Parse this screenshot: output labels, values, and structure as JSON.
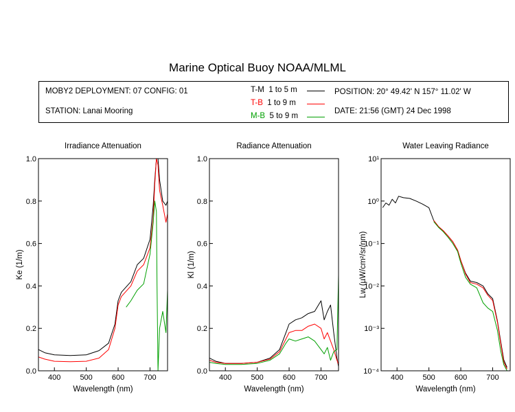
{
  "title": "Marine Optical Buoy NOAA/MLML",
  "info": {
    "deployment": "MOBY2 DEPLOYMENT: 07 CONFIG: 01",
    "station": "STATION: Lanai Mooring",
    "position": "POSITION: 20° 49.42' N   157° 11.02' W",
    "date": "DATE: 21:56 (GMT) 24 Dec 1998"
  },
  "legend": [
    {
      "code": "T-M",
      "range": "1 to 5  m",
      "color": "#000000"
    },
    {
      "code": "T-B",
      "range": "1 to 9  m",
      "color": "#ff0000"
    },
    {
      "code": "M-B",
      "range": "5 to 9  m",
      "color": "#00a000"
    }
  ],
  "chart_data": [
    {
      "type": "line",
      "title": "Irradiance Attenuation",
      "xlabel": "Wavelength (nm)",
      "ylabel": "Ke  (1/m)",
      "xlim": [
        350,
        755
      ],
      "ylim": [
        0,
        1.0
      ],
      "xticks": [
        400,
        500,
        600,
        700
      ],
      "yticks": [
        0.0,
        0.2,
        0.4,
        0.6,
        0.8,
        1.0
      ],
      "series": [
        {
          "name": "T-M",
          "color": "#000000",
          "x": [
            350,
            370,
            400,
            450,
            500,
            540,
            570,
            590,
            600,
            610,
            640,
            660,
            680,
            700,
            710,
            715,
            720,
            725,
            730,
            740,
            750,
            755
          ],
          "y": [
            0.1,
            0.085,
            0.075,
            0.072,
            0.075,
            0.095,
            0.13,
            0.22,
            0.33,
            0.37,
            0.42,
            0.5,
            0.53,
            0.62,
            0.78,
            0.9,
            1.0,
            1.0,
            0.9,
            0.8,
            0.78,
            0.8
          ]
        },
        {
          "name": "T-B",
          "color": "#ff0000",
          "x": [
            350,
            370,
            400,
            450,
            500,
            540,
            570,
            590,
            600,
            610,
            640,
            660,
            680,
            700,
            710,
            715,
            720,
            725,
            730,
            740,
            750,
            755
          ],
          "y": [
            0.065,
            0.055,
            0.045,
            0.043,
            0.045,
            0.06,
            0.1,
            0.2,
            0.31,
            0.35,
            0.4,
            0.47,
            0.5,
            0.58,
            0.72,
            0.88,
            1.0,
            0.97,
            0.85,
            0.78,
            0.7,
            0.74
          ]
        },
        {
          "name": "M-B",
          "color": "#00a000",
          "x": [
            625,
            640,
            660,
            680,
            700,
            710,
            715,
            720,
            722,
            725,
            730,
            740,
            750,
            755
          ],
          "y": [
            0.3,
            0.33,
            0.38,
            0.41,
            0.55,
            0.7,
            0.8,
            0.75,
            0.4,
            0.0,
            0.2,
            0.28,
            0.18,
            0.38
          ]
        }
      ]
    },
    {
      "type": "line",
      "title": "Radiance Attenuation",
      "xlabel": "Wavelength (nm)",
      "ylabel": "Kl  (1/m)",
      "xlim": [
        350,
        755
      ],
      "ylim": [
        0,
        1.0
      ],
      "xticks": [
        400,
        500,
        600,
        700
      ],
      "yticks": [
        0.0,
        0.2,
        0.4,
        0.6,
        0.8,
        1.0
      ],
      "series": [
        {
          "name": "T-M",
          "color": "#000000",
          "x": [
            350,
            370,
            400,
            450,
            500,
            540,
            570,
            590,
            600,
            620,
            640,
            660,
            680,
            700,
            710,
            720,
            730,
            740,
            750,
            755
          ],
          "y": [
            0.06,
            0.045,
            0.035,
            0.035,
            0.04,
            0.06,
            0.1,
            0.18,
            0.22,
            0.24,
            0.25,
            0.27,
            0.28,
            0.33,
            0.24,
            0.28,
            0.31,
            0.18,
            0.06,
            0.02
          ]
        },
        {
          "name": "T-B",
          "color": "#ff0000",
          "x": [
            350,
            370,
            400,
            450,
            500,
            540,
            570,
            590,
            600,
            620,
            640,
            660,
            680,
            700,
            710,
            720,
            730,
            740,
            750,
            755
          ],
          "y": [
            0.05,
            0.04,
            0.035,
            0.035,
            0.04,
            0.055,
            0.09,
            0.15,
            0.18,
            0.19,
            0.19,
            0.21,
            0.22,
            0.2,
            0.15,
            0.18,
            0.14,
            0.1,
            0.05,
            0.03
          ]
        },
        {
          "name": "M-B",
          "color": "#00a000",
          "x": [
            350,
            370,
            400,
            450,
            500,
            540,
            570,
            590,
            600,
            620,
            640,
            660,
            680,
            700,
            710,
            720,
            730,
            740,
            750,
            755
          ],
          "y": [
            0.04,
            0.035,
            0.03,
            0.03,
            0.035,
            0.05,
            0.08,
            0.13,
            0.15,
            0.14,
            0.15,
            0.16,
            0.14,
            0.1,
            0.08,
            0.11,
            0.05,
            0.09,
            0.1,
            0.45
          ]
        }
      ]
    },
    {
      "type": "line",
      "title": "Water Leaving Radiance",
      "xlabel": "Wavelength (nm)",
      "ylabel": "Lw  (µW/cm²/sr/nm)",
      "yscale": "log",
      "xlim": [
        350,
        755
      ],
      "ylim": [
        0.0001,
        10
      ],
      "xticks": [
        400,
        500,
        600,
        700
      ],
      "yticks": [
        0.0001,
        0.001,
        0.01,
        0.1,
        1,
        10
      ],
      "ytick_labels": [
        "10⁻⁴",
        "10⁻³",
        "10⁻²",
        "10⁻¹",
        "10⁰",
        "10¹"
      ],
      "series": [
        {
          "name": "T-M",
          "color": "#000000",
          "x": [
            355,
            365,
            375,
            385,
            395,
            405,
            420,
            440,
            460,
            480,
            500,
            515,
            530,
            545,
            560,
            575,
            590,
            600,
            615,
            630,
            650,
            670,
            685,
            700,
            715,
            725,
            735,
            745
          ],
          "y": [
            0.7,
            0.9,
            0.8,
            1.1,
            0.9,
            1.3,
            1.2,
            1.15,
            1.0,
            0.85,
            0.7,
            0.35,
            0.25,
            0.2,
            0.15,
            0.11,
            0.07,
            0.04,
            0.02,
            0.013,
            0.012,
            0.01,
            0.0065,
            0.005,
            0.0015,
            0.0005,
            0.00018,
            0.00012
          ]
        },
        {
          "name": "T-B",
          "color": "#ff0000",
          "x": [
            515,
            530,
            545,
            560,
            575,
            590,
            600,
            615,
            630,
            650,
            670,
            685,
            700,
            715,
            725,
            735,
            745
          ],
          "y": [
            0.35,
            0.25,
            0.2,
            0.15,
            0.11,
            0.07,
            0.04,
            0.019,
            0.012,
            0.011,
            0.009,
            0.006,
            0.0045,
            0.0014,
            0.00045,
            0.00016,
            0.00011
          ]
        },
        {
          "name": "M-B",
          "color": "#00a000",
          "x": [
            515,
            530,
            545,
            560,
            575,
            590,
            600,
            615,
            630,
            650,
            670,
            685,
            700,
            715,
            725,
            735,
            745
          ],
          "y": [
            0.33,
            0.24,
            0.19,
            0.14,
            0.1,
            0.065,
            0.035,
            0.016,
            0.011,
            0.009,
            0.004,
            0.003,
            0.0025,
            0.0009,
            0.0003,
            0.00014,
            0.0001
          ]
        }
      ]
    }
  ]
}
